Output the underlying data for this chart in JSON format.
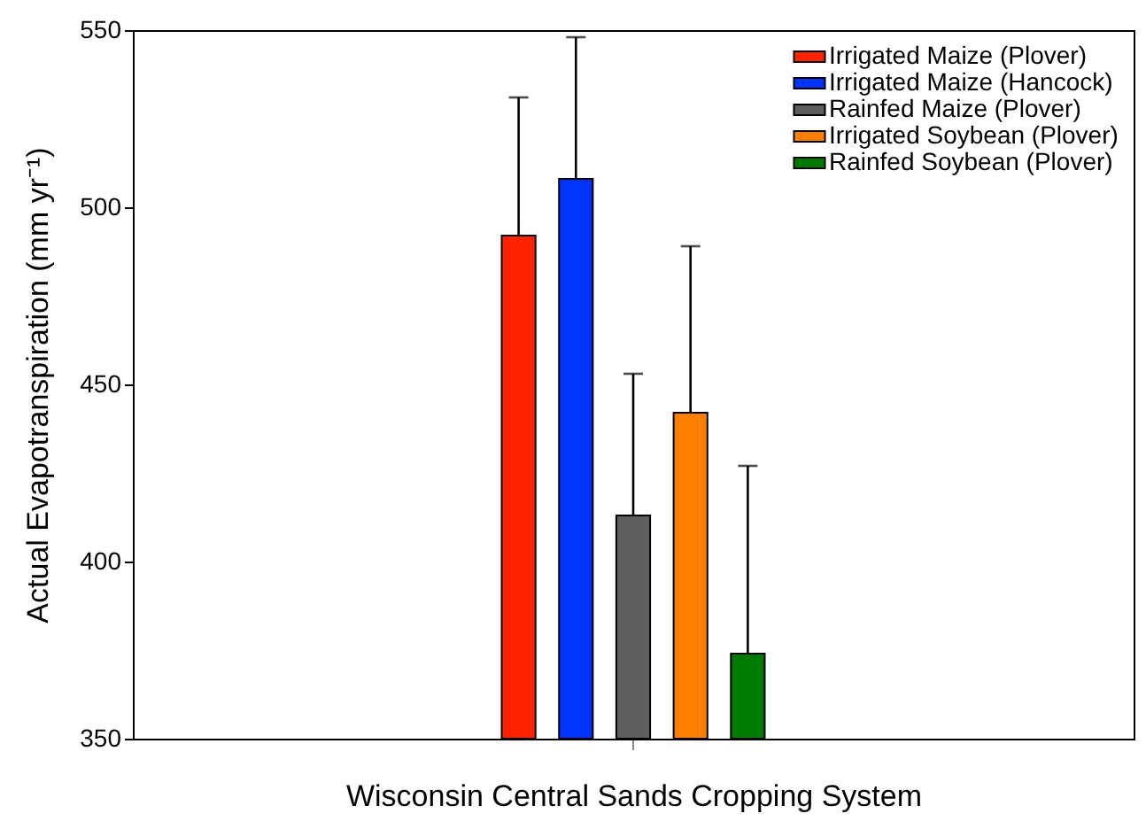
{
  "chart_data": {
    "type": "bar",
    "xlabel": "Wisconsin Central Sands Cropping System",
    "ylabel": "Actual Evapotranspiration (mm yr⁻¹)",
    "categories": [
      null
    ],
    "series": [
      {
        "name": "Irrigated Maize (Plover)",
        "color": "#ff2200",
        "values": [
          492
        ],
        "errors": [
          [
            492,
            531
          ]
        ]
      },
      {
        "name": "Irrigated Maize (Hancock)",
        "color": "#0033ff",
        "values": [
          508
        ],
        "errors": [
          [
            508,
            548
          ]
        ]
      },
      {
        "name": "Rainfed Maize (Plover)",
        "color": "#5f5f5f",
        "values": [
          413
        ],
        "errors": [
          [
            413,
            453
          ]
        ]
      },
      {
        "name": "Irrigated Soybean (Plover)",
        "color": "#ff8000",
        "values": [
          442
        ],
        "errors": [
          [
            442,
            489
          ]
        ]
      },
      {
        "name": "Rainfed Soybean (Plover)",
        "color": "#007a00",
        "values": [
          374
        ],
        "errors": [
          [
            374,
            427
          ]
        ]
      }
    ],
    "ylim": [
      350,
      550
    ],
    "yticks": [
      350,
      400,
      450,
      500,
      550
    ],
    "grid": false,
    "legend": "top right",
    "tick_labels": "y"
  }
}
